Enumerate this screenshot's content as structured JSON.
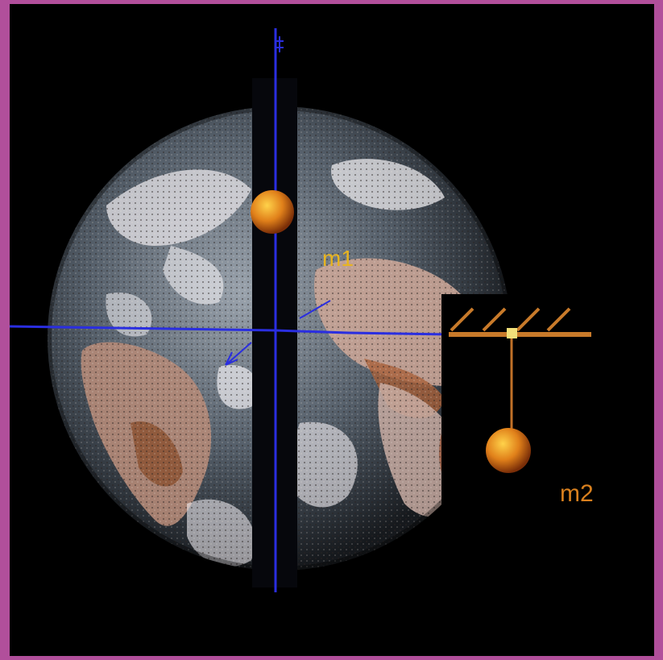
{
  "labels": {
    "mass_one": "m1",
    "mass_two": "m2"
  },
  "colors": {
    "frame": "#b14f9b",
    "background": "#000000",
    "axis_line": "#2a2ee0",
    "shaft": "#06070c",
    "pendulum_bar": "#c87a2a",
    "pendulum_string": "#c07028",
    "mass_one_label": "#e8b420",
    "mass_two_label": "#d9801e",
    "ball_highlight": "#ffd24a",
    "ball_body": "#e0801a",
    "ball_shadow": "#7a2e08"
  }
}
